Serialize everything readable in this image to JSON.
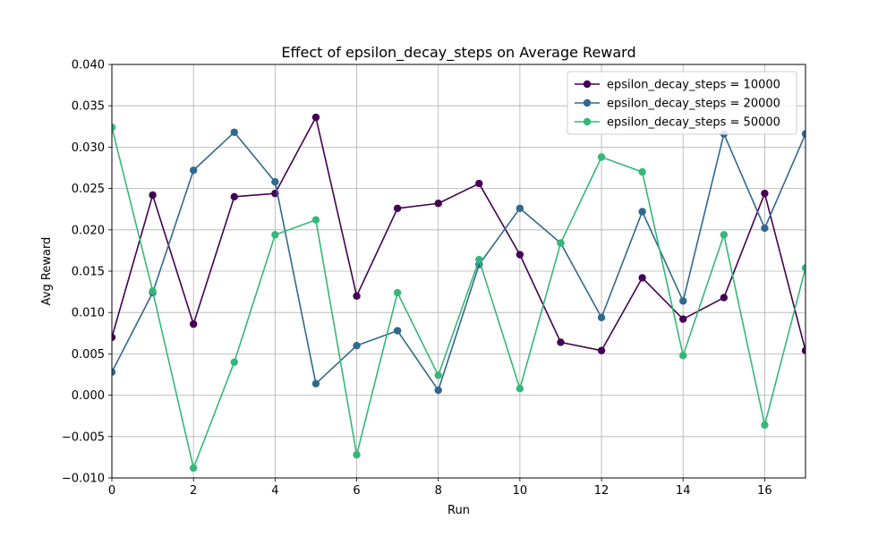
{
  "chart_data": {
    "type": "line",
    "title": "Effect of epsilon_decay_steps on Average Reward",
    "xlabel": "Run",
    "ylabel": "Avg Reward",
    "xlim": [
      0,
      17
    ],
    "ylim": [
      -0.01,
      0.04
    ],
    "xticks": [
      0,
      2,
      4,
      6,
      8,
      10,
      12,
      14,
      16
    ],
    "yticks": [
      -0.01,
      -0.005,
      0.0,
      0.005,
      0.01,
      0.015,
      0.02,
      0.025,
      0.03,
      0.035,
      0.04
    ],
    "ytick_labels": [
      "−0.010",
      "−0.005",
      "0.000",
      "0.005",
      "0.010",
      "0.015",
      "0.020",
      "0.025",
      "0.030",
      "0.035",
      "0.040"
    ],
    "grid": true,
    "legend_position": "top-right",
    "x": [
      0,
      1,
      2,
      3,
      4,
      5,
      6,
      7,
      8,
      9,
      10,
      11,
      12,
      13,
      14,
      15,
      16,
      17
    ],
    "series": [
      {
        "name": "epsilon_decay_steps = 10000",
        "color": "#440154",
        "values": [
          0.007,
          0.0242,
          0.0086,
          0.024,
          0.0244,
          0.0336,
          0.012,
          0.0226,
          0.0232,
          0.0256,
          0.017,
          0.0064,
          0.0054,
          0.0142,
          0.0092,
          0.0118,
          0.0244,
          0.0054
        ]
      },
      {
        "name": "epsilon_decay_steps = 20000",
        "color": "#31688e",
        "values": [
          0.0028,
          0.0124,
          0.0272,
          0.0318,
          0.0258,
          0.0014,
          0.006,
          0.0078,
          0.0006,
          0.0158,
          0.0226,
          0.0184,
          0.0094,
          0.0222,
          0.0114,
          0.0316,
          0.0202,
          0.0316
        ]
      },
      {
        "name": "epsilon_decay_steps = 50000",
        "color": "#35b779",
        "values": [
          0.0324,
          0.0126,
          -0.0088,
          0.004,
          0.0194,
          0.0212,
          -0.0072,
          0.0124,
          0.0024,
          0.0164,
          0.0008,
          0.0184,
          0.0288,
          0.027,
          0.0048,
          0.0194,
          -0.0036,
          0.0154
        ]
      }
    ]
  }
}
